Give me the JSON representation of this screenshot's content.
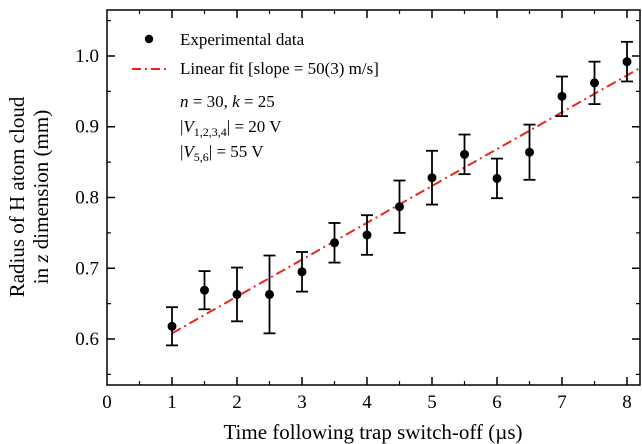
{
  "chart_data": {
    "type": "scatter",
    "xlabel": "Time following trap switch-off (µs)",
    "ylabel_line1": "Radius of H atom cloud",
    "ylabel_line2_prefix": "in ",
    "ylabel_line2_var": "z",
    "ylabel_line2_suffix": " dimension (mm)",
    "xlim": [
      0,
      8.2
    ],
    "ylim": [
      0.535,
      1.065
    ],
    "xticks": [
      0,
      1,
      2,
      3,
      4,
      5,
      6,
      7,
      8
    ],
    "xtick_labels": [
      "0",
      "1",
      "2",
      "3",
      "4",
      "5",
      "6",
      "7",
      "8"
    ],
    "yticks": [
      0.6,
      0.7,
      0.8,
      0.9,
      1.0
    ],
    "ytick_labels": [
      "0.6",
      "0.7",
      "0.8",
      "0.9",
      "1.0"
    ],
    "grid": false,
    "legend_position": "top-left",
    "series": [
      {
        "name": "Experimental data",
        "kind": "points-with-error-bars",
        "color": "#000000",
        "x": [
          1.0,
          1.5,
          2.0,
          2.5,
          3.0,
          3.5,
          4.0,
          4.5,
          5.0,
          5.5,
          6.0,
          6.5,
          7.0,
          7.5,
          8.0
        ],
        "y": [
          0.618,
          0.669,
          0.663,
          0.663,
          0.695,
          0.736,
          0.747,
          0.787,
          0.828,
          0.861,
          0.827,
          0.864,
          0.943,
          0.962,
          0.992
        ],
        "yerr": [
          0.027,
          0.027,
          0.038,
          0.055,
          0.028,
          0.028,
          0.028,
          0.037,
          0.038,
          0.028,
          0.028,
          0.039,
          0.028,
          0.03,
          0.028
        ]
      },
      {
        "name": "Linear fit [slope = 50(3) m/s]",
        "kind": "line",
        "style": "dash-dot",
        "color": "#e8261c",
        "x": [
          1.0,
          8.2
        ],
        "y": [
          0.608,
          0.983
        ]
      }
    ],
    "annotations": {
      "line1_n": "n",
      "line1_mid": " = 30, ",
      "line1_k": "k",
      "line1_end": " = 25",
      "line2_sub": "1,2,3,4",
      "line2_end": "| = 20 V",
      "line3_sub": "5,6",
      "line3_end": "| = 55 V",
      "bar_open": "|",
      "voltage_var": "V"
    }
  }
}
